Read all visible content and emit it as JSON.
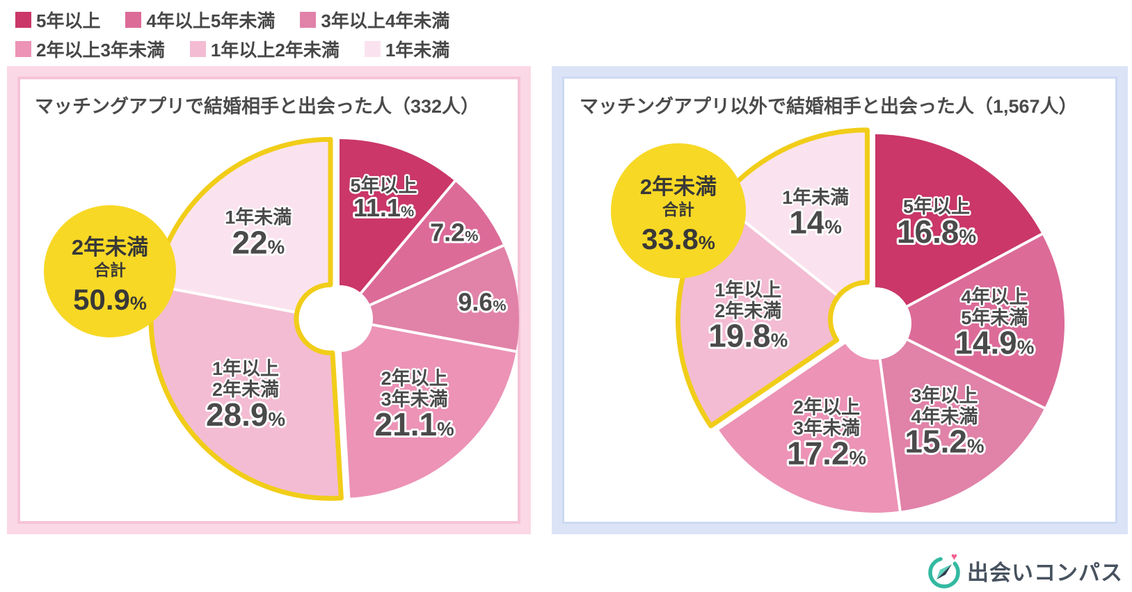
{
  "page": {
    "background": "#ffffff"
  },
  "legend": {
    "rows": [
      3,
      3
    ],
    "items": [
      {
        "label": "5年以上",
        "color": "#ca3768"
      },
      {
        "label": "4年以上5年未満",
        "color": "#dc6b98"
      },
      {
        "label": "3年以上4年未満",
        "color": "#e182a8"
      },
      {
        "label": "2年以上3年未満",
        "color": "#ec93b6"
      },
      {
        "label": "1年以上2年未満",
        "color": "#f3bcd2"
      },
      {
        "label": "1年未満",
        "color": "#fae3ee"
      }
    ]
  },
  "chart_data": [
    {
      "type": "pie",
      "title": "マッチングアプリで結婚相手と出会った人（332人）",
      "respondents": "332人",
      "donut": true,
      "unit": "%",
      "slices": [
        {
          "label_lines": [
            "5年以上"
          ],
          "pct": "11.1",
          "value": 11.1,
          "color": "#ca3768",
          "highlighted": false
        },
        {
          "label_lines": [],
          "pct": "7.2",
          "value": 7.2,
          "color": "#dc6b98",
          "highlighted": false
        },
        {
          "label_lines": [],
          "pct": "9.6",
          "value": 9.6,
          "color": "#e182a8",
          "highlighted": false
        },
        {
          "label_lines": [
            "2年以上",
            "3年未満"
          ],
          "pct": "21.1",
          "value": 21.1,
          "color": "#ec93b6",
          "highlighted": false
        },
        {
          "label_lines": [
            "1年以上",
            "2年未満"
          ],
          "pct": "28.9",
          "value": 28.9,
          "color": "#f3bcd2",
          "highlighted": true
        },
        {
          "label_lines": [
            "1年未満"
          ],
          "pct": "22",
          "value": 22.0,
          "color": "#fae3ee",
          "highlighted": true
        }
      ],
      "callout": {
        "line1": "2年未満",
        "line2": "合計",
        "pct": "50.9",
        "fill": "#f7d825",
        "text_color": "#383838"
      },
      "highlight_outline_color": "#f1cd19"
    },
    {
      "type": "pie",
      "title": "マッチングアプリ以外で結婚相手と出会った人（1,567人）",
      "respondents": "1,567人",
      "donut": true,
      "unit": "%",
      "slices": [
        {
          "label_lines": [
            "5年以上"
          ],
          "pct": "16.8",
          "value": 16.8,
          "color": "#ca3768",
          "highlighted": false
        },
        {
          "label_lines": [
            "4年以上",
            "5年未満"
          ],
          "pct": "14.9",
          "value": 14.9,
          "color": "#dc6b98",
          "highlighted": false
        },
        {
          "label_lines": [
            "3年以上",
            "4年未満"
          ],
          "pct": "15.2",
          "value": 15.2,
          "color": "#e182a8",
          "highlighted": false
        },
        {
          "label_lines": [
            "2年以上",
            "3年未満"
          ],
          "pct": "17.2",
          "value": 17.2,
          "color": "#ec93b6",
          "highlighted": false
        },
        {
          "label_lines": [
            "1年以上",
            "2年未満"
          ],
          "pct": "19.8",
          "value": 19.8,
          "color": "#f3bcd2",
          "highlighted": true
        },
        {
          "label_lines": [
            "1年未満"
          ],
          "pct": "14",
          "value": 14.0,
          "color": "#fae3ee",
          "highlighted": true
        }
      ],
      "callout": {
        "line1": "2年未満",
        "line2": "合計",
        "pct": "33.8",
        "fill": "#f7d825",
        "text_color": "#383838"
      },
      "highlight_outline_color": "#f1cd19"
    }
  ],
  "logo": {
    "text": "出会いコンパス",
    "ring_color": "#33b9a1",
    "needle_light": "#5ed2bd",
    "needle_dark": "#2e3c4e",
    "heart_color": "#f1608f",
    "text_color": "#47525f"
  }
}
